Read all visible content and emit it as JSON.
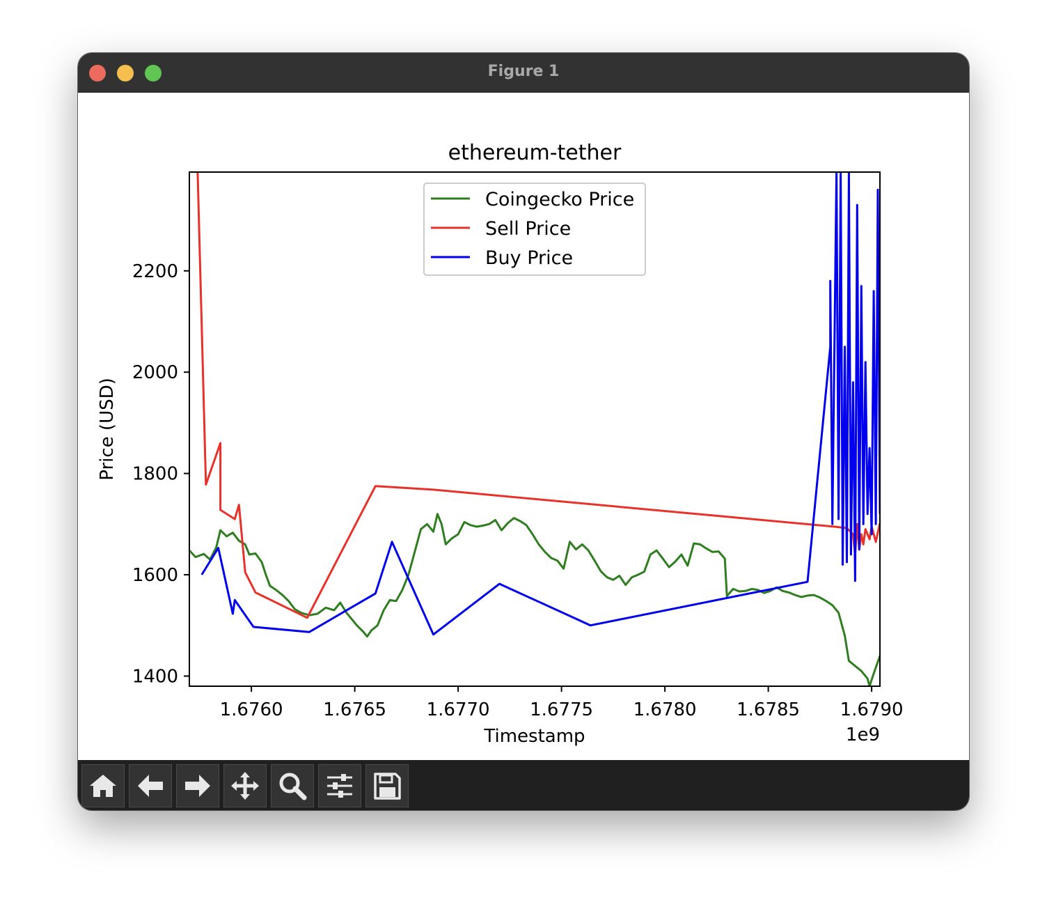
{
  "window": {
    "title": "Figure 1"
  },
  "toolbar": {
    "buttons": [
      {
        "name": "home-button",
        "icon": "home-icon"
      },
      {
        "name": "back-button",
        "icon": "arrow-left-icon"
      },
      {
        "name": "forward-button",
        "icon": "arrow-right-icon"
      },
      {
        "name": "pan-button",
        "icon": "move-icon"
      },
      {
        "name": "zoom-button",
        "icon": "magnifier-icon"
      },
      {
        "name": "configure-subplots-button",
        "icon": "sliders-icon"
      },
      {
        "name": "save-button",
        "icon": "floppy-disk-icon"
      }
    ]
  },
  "chart_data": {
    "type": "line",
    "title": "ethereum-tether",
    "xlabel": "Timestamp",
    "ylabel": "Price (USD)",
    "x_offset_label": "1e9",
    "xlim": [
      1.6757,
      1.67904
    ],
    "ylim": [
      1380,
      2395
    ],
    "x_ticks": [
      1.676,
      1.6765,
      1.677,
      1.6775,
      1.678,
      1.6785,
      1.679
    ],
    "x_tick_labels": [
      "1.6760",
      "1.6765",
      "1.6770",
      "1.6775",
      "1.6780",
      "1.6785",
      "1.6790"
    ],
    "y_ticks": [
      1400,
      1600,
      1800,
      2000,
      2200
    ],
    "y_tick_labels": [
      "1400",
      "1600",
      "1800",
      "2000",
      "2200"
    ],
    "grid": false,
    "legend_position": "upper center",
    "series": [
      {
        "name": "Coingecko Price",
        "color": "#2e7d1f",
        "points": [
          [
            1.6757,
            1648
          ],
          [
            1.67573,
            1635
          ],
          [
            1.67577,
            1641
          ],
          [
            1.6758,
            1630
          ],
          [
            1.67583,
            1654
          ],
          [
            1.67585,
            1688
          ],
          [
            1.67588,
            1676
          ],
          [
            1.67591,
            1683
          ],
          [
            1.67594,
            1667
          ],
          [
            1.67597,
            1660
          ],
          [
            1.67599,
            1640
          ],
          [
            1.67602,
            1642
          ],
          [
            1.67605,
            1625
          ],
          [
            1.67607,
            1600
          ],
          [
            1.67609,
            1578
          ],
          [
            1.67612,
            1570
          ],
          [
            1.67615,
            1560
          ],
          [
            1.67618,
            1548
          ],
          [
            1.67621,
            1532
          ],
          [
            1.67624,
            1525
          ],
          [
            1.67628,
            1520
          ],
          [
            1.67632,
            1523
          ],
          [
            1.67636,
            1535
          ],
          [
            1.6764,
            1530
          ],
          [
            1.67643,
            1545
          ],
          [
            1.67646,
            1525
          ],
          [
            1.67648,
            1515
          ],
          [
            1.67651,
            1500
          ],
          [
            1.67654,
            1488
          ],
          [
            1.67656,
            1478
          ],
          [
            1.67658,
            1490
          ],
          [
            1.67661,
            1500
          ],
          [
            1.67664,
            1530
          ],
          [
            1.67667,
            1550
          ],
          [
            1.6767,
            1548
          ],
          [
            1.67673,
            1570
          ],
          [
            1.67676,
            1600
          ],
          [
            1.67679,
            1645
          ],
          [
            1.67682,
            1690
          ],
          [
            1.67685,
            1700
          ],
          [
            1.67688,
            1685
          ],
          [
            1.6769,
            1720
          ],
          [
            1.67692,
            1700
          ],
          [
            1.67694,
            1660
          ],
          [
            1.67697,
            1672
          ],
          [
            1.677,
            1680
          ],
          [
            1.67703,
            1704
          ],
          [
            1.67706,
            1698
          ],
          [
            1.67709,
            1695
          ],
          [
            1.67712,
            1697
          ],
          [
            1.67715,
            1700
          ],
          [
            1.67718,
            1708
          ],
          [
            1.67721,
            1688
          ],
          [
            1.67724,
            1702
          ],
          [
            1.67727,
            1712
          ],
          [
            1.6773,
            1706
          ],
          [
            1.67733,
            1698
          ],
          [
            1.67736,
            1680
          ],
          [
            1.67739,
            1660
          ],
          [
            1.67742,
            1645
          ],
          [
            1.67745,
            1633
          ],
          [
            1.67748,
            1628
          ],
          [
            1.67751,
            1612
          ],
          [
            1.67754,
            1665
          ],
          [
            1.67757,
            1650
          ],
          [
            1.6776,
            1660
          ],
          [
            1.67763,
            1648
          ],
          [
            1.67766,
            1628
          ],
          [
            1.67769,
            1607
          ],
          [
            1.67772,
            1595
          ],
          [
            1.67775,
            1590
          ],
          [
            1.67778,
            1598
          ],
          [
            1.67781,
            1580
          ],
          [
            1.67784,
            1595
          ],
          [
            1.67787,
            1600
          ],
          [
            1.6779,
            1606
          ],
          [
            1.67793,
            1640
          ],
          [
            1.67796,
            1648
          ],
          [
            1.67799,
            1632
          ],
          [
            1.67802,
            1615
          ],
          [
            1.67805,
            1626
          ],
          [
            1.67808,
            1640
          ],
          [
            1.67811,
            1618
          ],
          [
            1.67814,
            1662
          ],
          [
            1.67817,
            1660
          ],
          [
            1.6782,
            1652
          ],
          [
            1.67823,
            1645
          ],
          [
            1.67826,
            1646
          ],
          [
            1.67829,
            1632
          ],
          [
            1.6783,
            1558
          ],
          [
            1.67833,
            1572
          ],
          [
            1.67836,
            1567
          ],
          [
            1.67839,
            1568
          ],
          [
            1.67842,
            1572
          ],
          [
            1.67845,
            1570
          ],
          [
            1.67848,
            1564
          ],
          [
            1.67851,
            1568
          ],
          [
            1.67854,
            1575
          ],
          [
            1.67857,
            1568
          ],
          [
            1.6786,
            1565
          ],
          [
            1.67863,
            1560
          ],
          [
            1.67866,
            1556
          ],
          [
            1.67869,
            1559
          ],
          [
            1.67872,
            1560
          ],
          [
            1.67875,
            1555
          ],
          [
            1.67878,
            1548
          ],
          [
            1.67881,
            1540
          ],
          [
            1.67884,
            1525
          ],
          [
            1.67887,
            1480
          ],
          [
            1.67889,
            1430
          ],
          [
            1.67892,
            1420
          ],
          [
            1.67895,
            1410
          ],
          [
            1.67898,
            1395
          ],
          [
            1.67899,
            1380
          ],
          [
            1.67901,
            1405
          ],
          [
            1.67904,
            1440
          ]
        ]
      },
      {
        "name": "Sell Price",
        "color": "#e8312a",
        "points": []
      },
      {
        "name": "Buy Price",
        "color": "#0000ee",
        "points": []
      }
    ]
  }
}
